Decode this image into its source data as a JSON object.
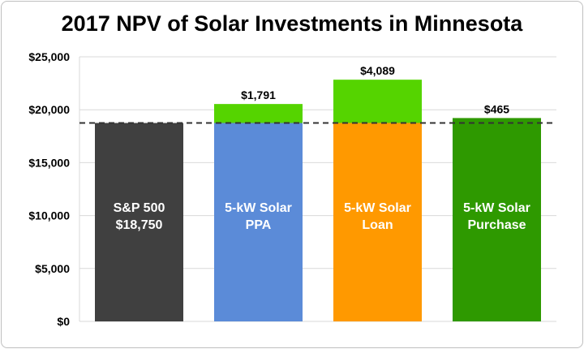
{
  "chart_data": {
    "type": "bar",
    "title": "2017 NPV of Solar Investments in Minnesota",
    "xlabel": "",
    "ylabel": "",
    "ylim": [
      0,
      25000
    ],
    "yticks": [
      "$0",
      "$5,000",
      "$10,000",
      "$15,000",
      "$20,000",
      "$25,000"
    ],
    "ytick_values": [
      0,
      5000,
      10000,
      15000,
      20000,
      25000
    ],
    "grid": true,
    "reference_line": 18750,
    "bars": [
      {
        "label_lines": [
          "S&P 500",
          "$18,750"
        ],
        "base": 18750,
        "extra": 0,
        "extra_label": "",
        "color": "#404040",
        "extra_color": "#55d400"
      },
      {
        "label_lines": [
          "5-kW Solar",
          "PPA"
        ],
        "base": 18750,
        "extra": 1791,
        "extra_label": "$1,791",
        "color": "#5b8bd8",
        "extra_color": "#55d400"
      },
      {
        "label_lines": [
          "5-kW Solar",
          "Loan"
        ],
        "base": 18750,
        "extra": 4089,
        "extra_label": "$4,089",
        "color": "#ff9900",
        "extra_color": "#55d400"
      },
      {
        "label_lines": [
          "5-kW Solar",
          "Purchase"
        ],
        "base": 19215,
        "extra": 0,
        "extra_label": "$465",
        "color": "#2e9900",
        "extra_color": "#55d400"
      }
    ]
  }
}
